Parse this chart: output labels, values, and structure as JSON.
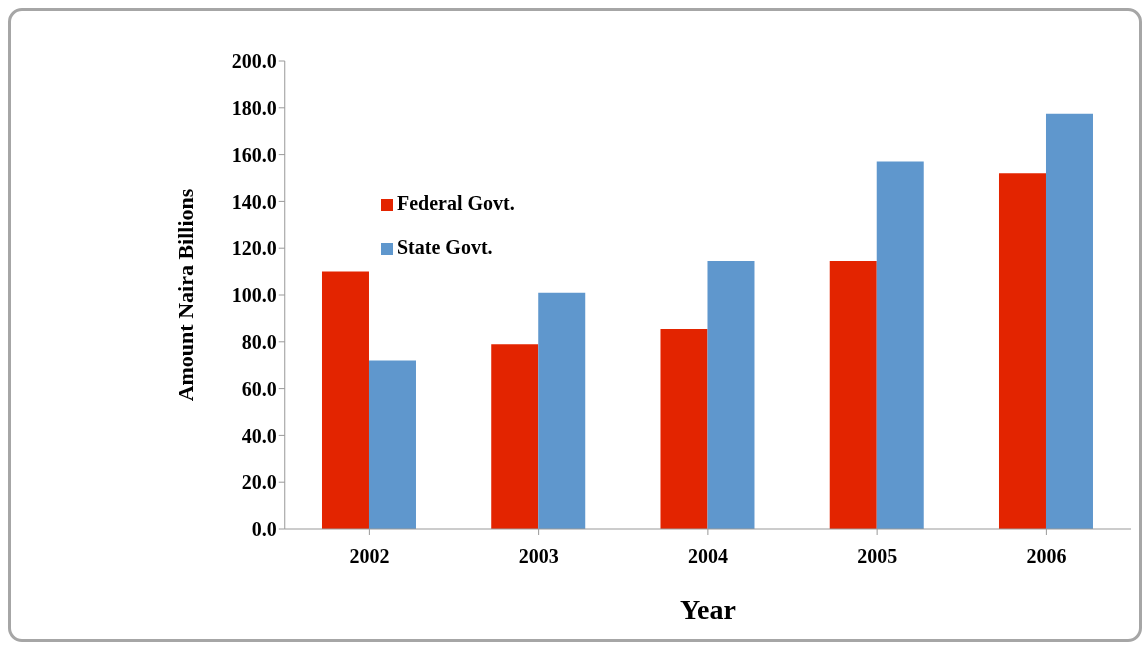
{
  "chart_data": {
    "type": "bar",
    "xlabel": "Year",
    "ylabel": "Amount Naira Billions",
    "categories": [
      "2002",
      "2003",
      "2004",
      "2005",
      "2006"
    ],
    "series": [
      {
        "name": "Federal Govt.",
        "color": "#e32400",
        "values": [
          110,
          79,
          85.5,
          114.5,
          152
        ]
      },
      {
        "name": "State Govt.",
        "color": "#5f97cd",
        "values": [
          72,
          101,
          114.5,
          157,
          177.5
        ]
      }
    ],
    "ylim": [
      0,
      200
    ],
    "yticks": [
      {
        "value": 0,
        "label": "0.0"
      },
      {
        "value": 20,
        "label": "20.0"
      },
      {
        "value": 40,
        "label": "40.0"
      },
      {
        "value": 60,
        "label": "60.0"
      },
      {
        "value": 80,
        "label": "80.0"
      },
      {
        "value": 100,
        "label": "100.0"
      },
      {
        "value": 120,
        "label": "120.0"
      },
      {
        "value": 140,
        "label": "140.0"
      },
      {
        "value": 160,
        "label": "160.0"
      },
      {
        "value": 180,
        "label": "180.0"
      },
      {
        "value": 200,
        "label": "200.0"
      }
    ],
    "grid": false,
    "legend": "top left"
  }
}
